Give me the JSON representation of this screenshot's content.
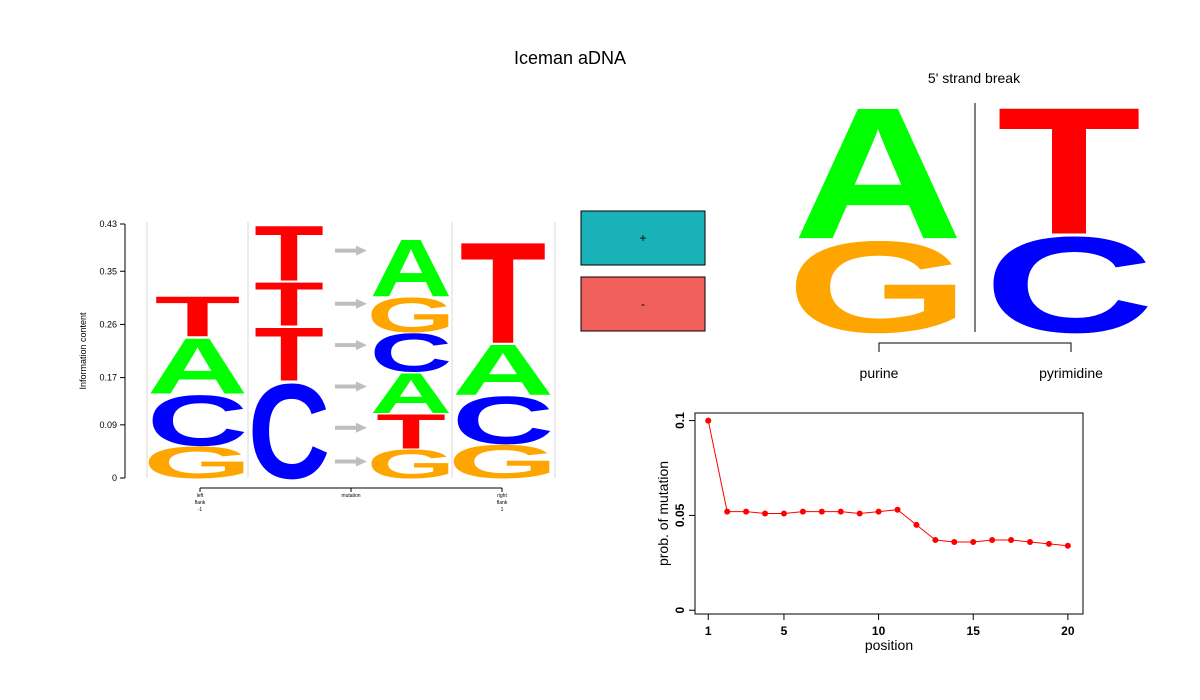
{
  "title": "Iceman aDNA",
  "colors": {
    "A": "#00ff00",
    "C": "#0000ff",
    "G": "#ffa500",
    "T": "#ff0000",
    "plus": "#1ab2b9",
    "minus": "#f2605d",
    "arrow": "#bebebe",
    "purine": "#0000ff",
    "pyrimidine": "#ff0000",
    "line": "#ff0000"
  },
  "chart_data": [
    {
      "type": "sequence-logo",
      "ylabel": "Information content",
      "yticks": [
        "0",
        "0.09",
        "0.17",
        "0.26",
        "0.35",
        "0.43"
      ],
      "ylim": [
        0,
        0.43
      ],
      "xticks": [
        {
          "lines": [
            "left",
            "flank",
            "-1"
          ]
        },
        {
          "lines": [
            "mutation"
          ]
        },
        {
          "lines": [
            "right",
            "flank",
            "1"
          ]
        }
      ],
      "columns": [
        {
          "name": "left flank -1",
          "stack": [
            {
              "letter": "G",
              "value": 0.055
            },
            {
              "letter": "C",
              "value": 0.088
            },
            {
              "letter": "A",
              "value": 0.097
            },
            {
              "letter": "T",
              "value": 0.07
            }
          ]
        },
        {
          "name": "mutation from",
          "stack": [
            {
              "letter": "C",
              "value": 0.165
            },
            {
              "letter": "T",
              "value": 0.093
            },
            {
              "letter": "T",
              "value": 0.076
            },
            {
              "letter": "T",
              "value": 0.096
            }
          ]
        },
        {
          "name": "mutation to",
          "stack": [
            {
              "letter": "G",
              "value": 0.05
            },
            {
              "letter": "T",
              "value": 0.06
            },
            {
              "letter": "A",
              "value": 0.07
            },
            {
              "letter": "C",
              "value": 0.067
            },
            {
              "letter": "G",
              "value": 0.06
            },
            {
              "letter": "A",
              "value": 0.1
            }
          ]
        },
        {
          "name": "right flank 1",
          "stack": [
            {
              "letter": "G",
              "value": 0.058
            },
            {
              "letter": "C",
              "value": 0.083
            },
            {
              "letter": "A",
              "value": 0.088
            },
            {
              "letter": "T",
              "value": 0.176
            }
          ]
        }
      ],
      "arrow_levels": [
        0.028,
        0.085,
        0.155,
        0.225,
        0.295,
        0.385
      ]
    },
    {
      "type": "strand",
      "signs": [
        "+",
        "-"
      ]
    },
    {
      "type": "logo",
      "title": "5' strand break",
      "columns": [
        {
          "label": "purine",
          "stack": [
            {
              "letter": "G",
              "value": 0.41
            },
            {
              "letter": "A",
              "value": 0.59
            }
          ]
        },
        {
          "label": "pyrimidine",
          "stack": [
            {
              "letter": "C",
              "value": 0.43
            },
            {
              "letter": "T",
              "value": 0.57
            }
          ]
        }
      ]
    },
    {
      "type": "line",
      "xlabel": "position",
      "ylabel": "prob. of mutation",
      "xticks": [
        1,
        5,
        10,
        15,
        20
      ],
      "yticks": [
        0,
        0.05,
        0.1
      ],
      "xlim": [
        0.3,
        20.8
      ],
      "ylim": [
        -0.002,
        0.104
      ],
      "x": [
        1,
        2,
        3,
        4,
        5,
        6,
        7,
        8,
        9,
        10,
        11,
        12,
        13,
        14,
        15,
        16,
        17,
        18,
        19,
        20
      ],
      "y": [
        0.1,
        0.052,
        0.052,
        0.051,
        0.051,
        0.052,
        0.052,
        0.052,
        0.051,
        0.052,
        0.053,
        0.045,
        0.037,
        0.036,
        0.036,
        0.037,
        0.037,
        0.036,
        0.035,
        0.034
      ]
    }
  ]
}
